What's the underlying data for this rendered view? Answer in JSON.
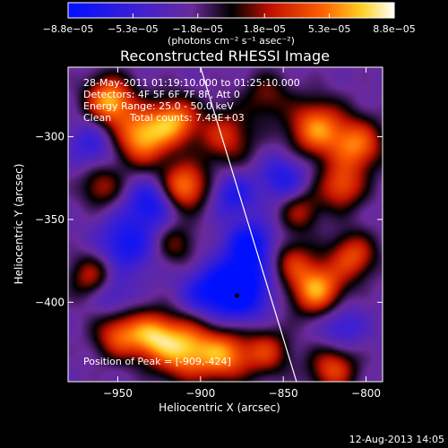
{
  "chart_data": {
    "type": "heatmap",
    "title": "Reconstructed RHESSI Image",
    "xlabel": "Heliocentric X (arcsec)",
    "ylabel": "Heliocentric Y (arcsec)",
    "xlim": [
      -980,
      -790
    ],
    "ylim": [
      -448,
      -258
    ],
    "x_ticks": [
      -950,
      -900,
      -850,
      -800
    ],
    "y_ticks": [
      -300,
      -350,
      -400
    ],
    "x_tick_labels": [
      "−950",
      "−900",
      "−850",
      "−800"
    ],
    "y_tick_labels": [
      "−300",
      "−350",
      "−400"
    ],
    "colorbar": {
      "range": [
        -8.8e-05,
        8.8e-05
      ],
      "tick_values": [
        -8.8e-05,
        -5.3e-05,
        -1.8e-05,
        1.8e-05,
        5.3e-05,
        8.8e-05
      ],
      "tick_labels": [
        "−8.8e−05",
        "−5.3e−05",
        "−1.8e−05",
        "1.8e−05",
        "5.3e−05",
        "8.8e−05"
      ],
      "unit_label": "(photons cm⁻² s⁻¹ asec⁻²)"
    },
    "annotations": {
      "time_range": "28-May-2011 01:19:10.000 to 01:25:10.000",
      "detectors": "Detectors: 4F 5F 6F 7F 8F, Att 0",
      "energy_range": "Energy Range: 25.0 - 50.0 keV",
      "algorithm": "Clean",
      "total_counts": "Total counts: 7.49E+03",
      "peak_position": "Position of Peak = [-909,-424]"
    },
    "limb_line": [
      [
        -900,
        -258
      ],
      [
        -842,
        -448
      ]
    ],
    "marker_point": [
      -878,
      -396
    ],
    "blobs": [
      {
        "x": -955,
        "y": -278,
        "v": 1.0,
        "s": 10
      },
      {
        "x": -935,
        "y": -300,
        "v": 1.0,
        "s": 12
      },
      {
        "x": -915,
        "y": -290,
        "v": 0.8,
        "s": 10
      },
      {
        "x": -910,
        "y": -330,
        "v": 0.9,
        "s": 10
      },
      {
        "x": -885,
        "y": -300,
        "v": 0.6,
        "s": 12
      },
      {
        "x": -860,
        "y": -275,
        "v": 0.4,
        "s": 10
      },
      {
        "x": -830,
        "y": -295,
        "v": 0.9,
        "s": 12
      },
      {
        "x": -805,
        "y": -305,
        "v": 0.8,
        "s": 11
      },
      {
        "x": -815,
        "y": -330,
        "v": 0.7,
        "s": 10
      },
      {
        "x": -840,
        "y": -345,
        "v": 0.5,
        "s": 9
      },
      {
        "x": -960,
        "y": -330,
        "v": 0.5,
        "s": 9
      },
      {
        "x": -965,
        "y": -385,
        "v": 0.6,
        "s": 10
      },
      {
        "x": -950,
        "y": -420,
        "v": 0.7,
        "s": 10
      },
      {
        "x": -930,
        "y": -420,
        "v": 0.8,
        "s": 10
      },
      {
        "x": -910,
        "y": -428,
        "v": 1.0,
        "s": 13
      },
      {
        "x": -885,
        "y": -432,
        "v": 0.8,
        "s": 11
      },
      {
        "x": -860,
        "y": -430,
        "v": 0.6,
        "s": 10
      },
      {
        "x": -820,
        "y": -440,
        "v": 0.7,
        "s": 10
      },
      {
        "x": -830,
        "y": -392,
        "v": 1.0,
        "s": 11
      },
      {
        "x": -808,
        "y": -372,
        "v": 0.7,
        "s": 10
      },
      {
        "x": -845,
        "y": -375,
        "v": 0.5,
        "s": 9
      },
      {
        "x": -915,
        "y": -365,
        "v": 0.4,
        "s": 9
      },
      {
        "x": -945,
        "y": -365,
        "v": -0.6,
        "s": 12
      },
      {
        "x": -878,
        "y": -392,
        "v": -1.0,
        "s": 13
      },
      {
        "x": -870,
        "y": -365,
        "v": -0.7,
        "s": 10
      },
      {
        "x": -930,
        "y": -340,
        "v": -0.6,
        "s": 10
      },
      {
        "x": -965,
        "y": -305,
        "v": -0.4,
        "s": 10
      },
      {
        "x": -850,
        "y": -325,
        "v": -0.5,
        "s": 10
      },
      {
        "x": -880,
        "y": -335,
        "v": -0.5,
        "s": 9
      },
      {
        "x": -900,
        "y": -395,
        "v": -0.4,
        "s": 10
      },
      {
        "x": -955,
        "y": -395,
        "v": -0.4,
        "s": 9
      },
      {
        "x": -815,
        "y": -415,
        "v": -0.4,
        "s": 10
      }
    ]
  },
  "footer": {
    "date_stamp": "12-Aug-2013 14:05"
  }
}
